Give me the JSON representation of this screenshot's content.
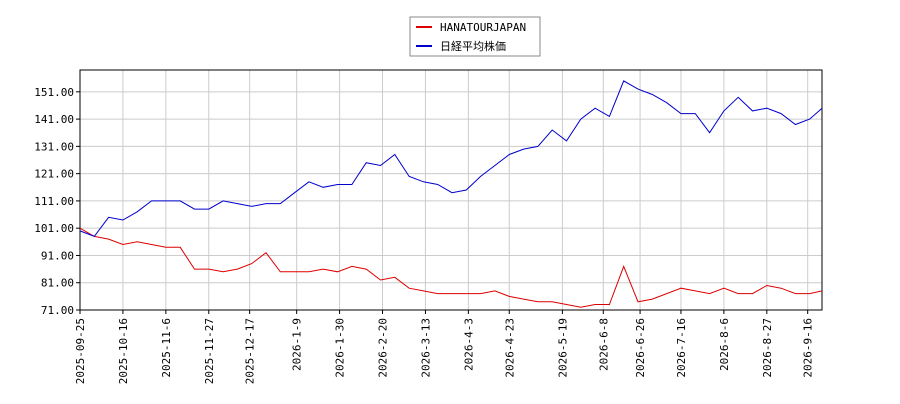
{
  "chart_data": {
    "type": "line",
    "x": [
      "2025-09-25",
      "2025-10-02",
      "2025-10-09",
      "2025-10-16",
      "2025-10-23",
      "2025-10-30",
      "2025-11-06",
      "2025-11-13",
      "2025-11-20",
      "2025-11-27",
      "2025-12-04",
      "2025-12-11",
      "2025-12-18",
      "2025-12-25",
      "2026-01-01",
      "2026-01-08",
      "2026-01-15",
      "2026-01-22",
      "2026-01-29",
      "2026-02-05",
      "2026-02-12",
      "2026-02-19",
      "2026-02-26",
      "2026-03-05",
      "2026-03-12",
      "2026-03-19",
      "2026-03-26",
      "2026-04-02",
      "2026-04-09",
      "2026-04-16",
      "2026-04-23",
      "2026-04-30",
      "2026-05-07",
      "2026-05-14",
      "2026-05-21",
      "2026-05-28",
      "2026-06-04",
      "2026-06-11",
      "2026-06-18",
      "2026-06-25",
      "2026-07-02",
      "2026-07-09",
      "2026-07-16",
      "2026-07-23",
      "2026-07-30",
      "2026-08-06",
      "2026-08-13",
      "2026-08-20",
      "2026-08-27",
      "2026-09-03",
      "2026-09-10",
      "2026-09-17",
      "2026-09-23"
    ],
    "series": [
      {
        "name": "HANATOURJAPAN",
        "color": "#dd0000",
        "values": [
          101,
          98,
          97,
          95,
          96,
          95,
          94,
          94,
          86,
          86,
          85,
          86,
          88,
          92,
          85,
          85,
          85,
          86,
          85,
          87,
          86,
          82,
          83,
          79,
          78,
          77,
          77,
          77,
          77,
          78,
          76,
          75,
          74,
          74,
          73,
          72,
          73,
          73,
          87,
          74,
          75,
          77,
          79,
          78,
          77,
          79,
          77,
          77,
          80,
          79,
          77,
          77,
          78
        ]
      },
      {
        "name": "日経平均株価",
        "color": "#0000cc",
        "values": [
          100,
          98,
          105,
          104,
          107,
          111,
          111,
          111,
          108,
          108,
          111,
          110,
          109,
          110,
          110,
          114,
          118,
          116,
          117,
          117,
          125,
          124,
          128,
          120,
          118,
          117,
          114,
          115,
          120,
          124,
          128,
          130,
          131,
          137,
          133,
          141,
          145,
          142,
          155,
          152,
          150,
          147,
          143,
          143,
          136,
          144,
          149,
          144,
          145,
          143,
          139,
          141,
          145
        ]
      }
    ],
    "xlim": [
      "2025-09-25",
      "2026-09-23"
    ],
    "xticks": [
      "2025-09-25",
      "2025-10-16",
      "2025-11-6",
      "2025-11-27",
      "2025-12-17",
      "2026-1-9",
      "2026-1-30",
      "2026-2-20",
      "2026-3-13",
      "2026-4-3",
      "2026-4-23",
      "2026-5-19",
      "2026-6-8",
      "2026-6-26",
      "2026-7-16",
      "2026-8-6",
      "2026-8-27",
      "2026-9-16"
    ],
    "ylim": [
      71,
      159
    ],
    "yticks": [
      {
        "value": 71,
        "label": "71.00"
      },
      {
        "value": 81,
        "label": "81.00"
      },
      {
        "value": 91,
        "label": "91.00"
      },
      {
        "value": 101,
        "label": "101.00"
      },
      {
        "value": 111,
        "label": "111.00"
      },
      {
        "value": 121,
        "label": "121.00"
      },
      {
        "value": 131,
        "label": "131.00"
      },
      {
        "value": 141,
        "label": "141.00"
      },
      {
        "value": 151,
        "label": "151.00"
      }
    ],
    "grid": true,
    "legend": "top"
  }
}
